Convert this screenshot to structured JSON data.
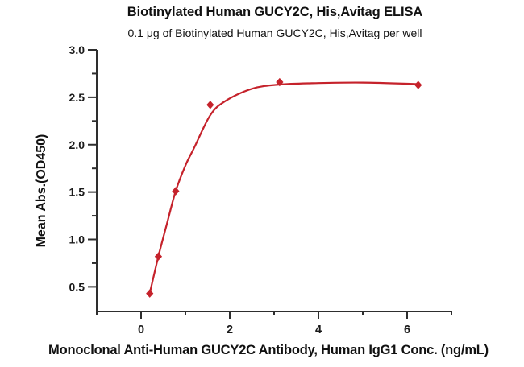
{
  "chart": {
    "title": "Biotinylated Human GUCY2C, His,Avitag ELISA",
    "subtitle": "0.1 μg of Biotinylated Human GUCY2C, His,Avitag per well",
    "x_axis_label": "Monoclonal Anti-Human GUCY2C Antibody, Human IgG1 Conc. (ng/mL)",
    "y_axis_label": "Mean Abs.(OD450)"
  },
  "chart_data": {
    "type": "scatter",
    "title": "Biotinylated Human GUCY2C, His,Avitag ELISA",
    "subtitle": "0.1 μg of Biotinylated Human GUCY2C, His,Avitag per well",
    "xlabel": "Monoclonal Anti-Human GUCY2C Antibody, Human IgG1 Conc. (ng/mL)",
    "ylabel": "Mean Abs.(OD450)",
    "grid": false,
    "legend": false,
    "xlim": [
      -1,
      7
    ],
    "ylim": [
      0.24,
      3.0
    ],
    "x_ticks": [
      0,
      2,
      4,
      6
    ],
    "x_tick_labels": [
      "0",
      "2",
      "4",
      "6"
    ],
    "x_minor_ticks": [
      1,
      3,
      5,
      7
    ],
    "y_ticks": [
      0.5,
      1.0,
      1.5,
      2.0,
      2.5,
      3.0
    ],
    "y_tick_labels": [
      "0.5",
      "1.0",
      "1.5",
      "2.0",
      "2.5",
      "3.0"
    ],
    "y_minor_ticks": [
      0.75,
      1.25,
      1.75,
      2.25,
      2.75
    ],
    "series": [
      {
        "name": "Biotinylated Human GUCY2C, His,Avitag",
        "marker": "diamond",
        "color": "#C5222B",
        "x": [
          0.195,
          0.39,
          0.78,
          1.56,
          3.125,
          6.25
        ],
        "y": [
          0.43,
          0.82,
          1.51,
          2.42,
          2.66,
          2.63
        ]
      }
    ],
    "fit_curve_anchors": [
      [
        0.195,
        0.43
      ],
      [
        0.39,
        0.82
      ],
      [
        0.58,
        1.16
      ],
      [
        0.78,
        1.51
      ],
      [
        1.0,
        1.78
      ],
      [
        1.2,
        1.97
      ],
      [
        1.56,
        2.31
      ],
      [
        1.9,
        2.46
      ],
      [
        2.5,
        2.59
      ],
      [
        3.125,
        2.635
      ],
      [
        4.0,
        2.65
      ],
      [
        5.0,
        2.655
      ],
      [
        6.25,
        2.64
      ]
    ],
    "axis_color": "#2e2e2e",
    "tick_label_color": "#1a1a1a"
  }
}
